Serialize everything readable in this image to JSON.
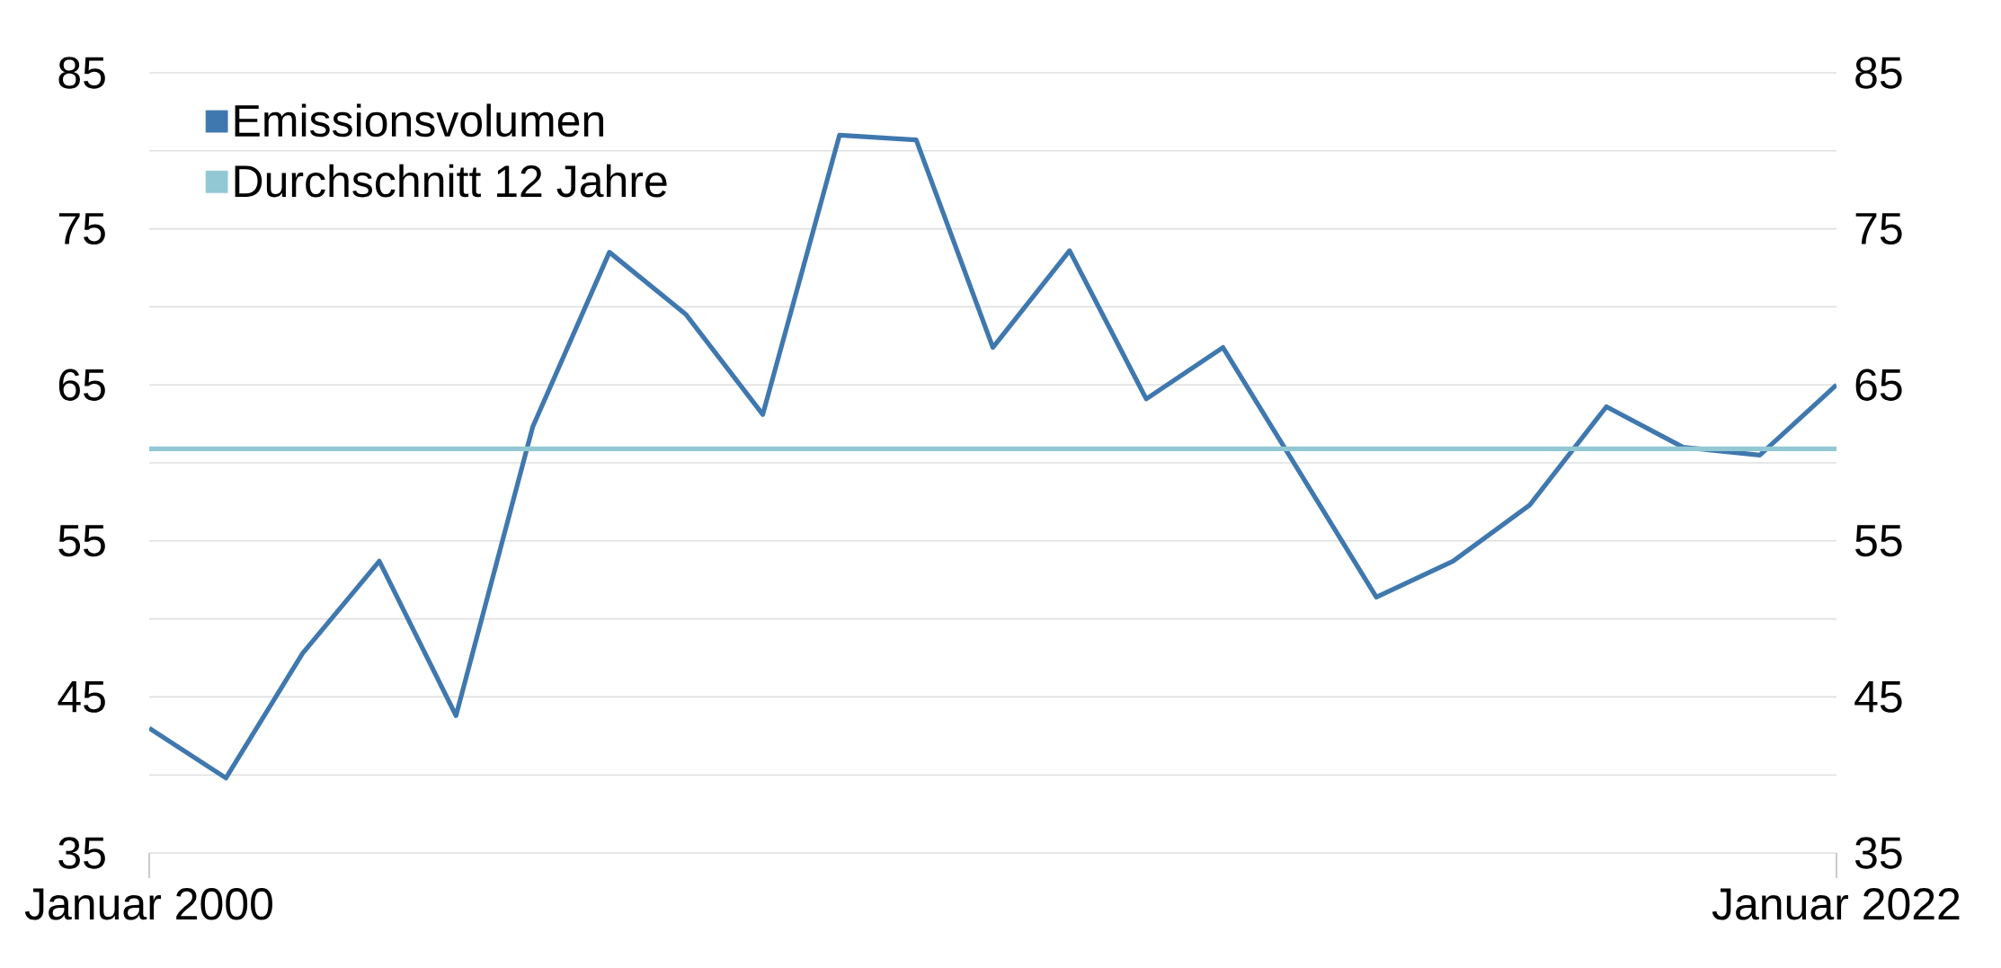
{
  "chart_data": {
    "type": "line",
    "categories": [
      "Januar 2000",
      null,
      null,
      null,
      null,
      null,
      null,
      null,
      null,
      null,
      null,
      null,
      null,
      null,
      null,
      null,
      null,
      null,
      null,
      null,
      null,
      null,
      "Januar 2022"
    ],
    "series": [
      {
        "name": "Emissionsvolumen",
        "color": "#3f78ae",
        "values": [
          43.0,
          39.8,
          47.8,
          53.7,
          43.8,
          62.3,
          73.5,
          69.5,
          63.1,
          81.0,
          80.7,
          67.4,
          73.6,
          64.1,
          67.4,
          59.4,
          51.4,
          53.7,
          57.3,
          63.6,
          61.0,
          60.5,
          65.0
        ]
      },
      {
        "name": "Durchschnitt 12 Jahre",
        "color": "#92c8d3",
        "values": [
          60.9,
          60.9,
          60.9,
          60.9,
          60.9,
          60.9,
          60.9,
          60.9,
          60.9,
          60.9,
          60.9,
          60.9,
          60.9,
          60.9,
          60.9,
          60.9,
          60.9,
          60.9,
          60.9,
          60.9,
          60.9,
          60.9,
          60.9
        ]
      }
    ],
    "ylim": [
      35,
      85
    ],
    "yticks": [
      35,
      {
        "value": 40,
        "label": null
      },
      45,
      {
        "value": 50,
        "label": null
      },
      55,
      {
        "value": 60,
        "label": null
      },
      65,
      {
        "value": 70,
        "label": null
      },
      75,
      {
        "value": 80,
        "label": null
      },
      85
    ],
    "y2lim": [
      35,
      85
    ],
    "y2ticks": [
      35,
      45,
      55,
      65,
      75,
      85
    ],
    "grid": "y",
    "legend": "top left"
  }
}
